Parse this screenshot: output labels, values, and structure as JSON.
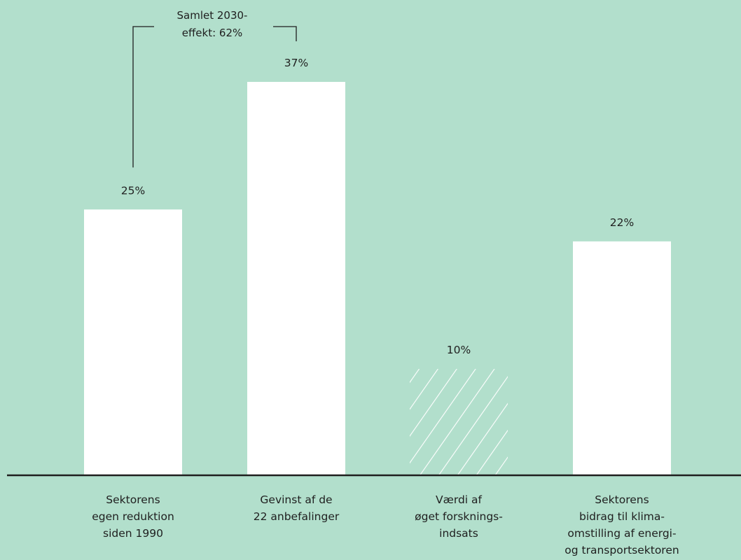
{
  "colors": {
    "background": "#b2dfcc",
    "bar": "#ffffff",
    "axis": "#1f1f1f",
    "text": "#1f1f1f"
  },
  "annotation": {
    "text": "Samlet 2030-\neffekt: 62%",
    "spans": [
      0,
      1
    ]
  },
  "chart_data": {
    "type": "bar",
    "title": "",
    "xlabel": "",
    "ylabel": "",
    "ylim": [
      0,
      40
    ],
    "grid": false,
    "categories": [
      "Sektorens\negen reduktion\nsiden 1990",
      "Gevinst af de\n22 anbefalinger",
      "Værdi af\nøget forsknings-\nindsats",
      "Sektorens\nbidrag til klima-\nomstilling af energi-\nog transportsektoren"
    ],
    "values": [
      25,
      37,
      10,
      22
    ],
    "data_labels": [
      "25%",
      "37%",
      "10%",
      "22%"
    ],
    "hatched": [
      false,
      false,
      true,
      false
    ]
  }
}
